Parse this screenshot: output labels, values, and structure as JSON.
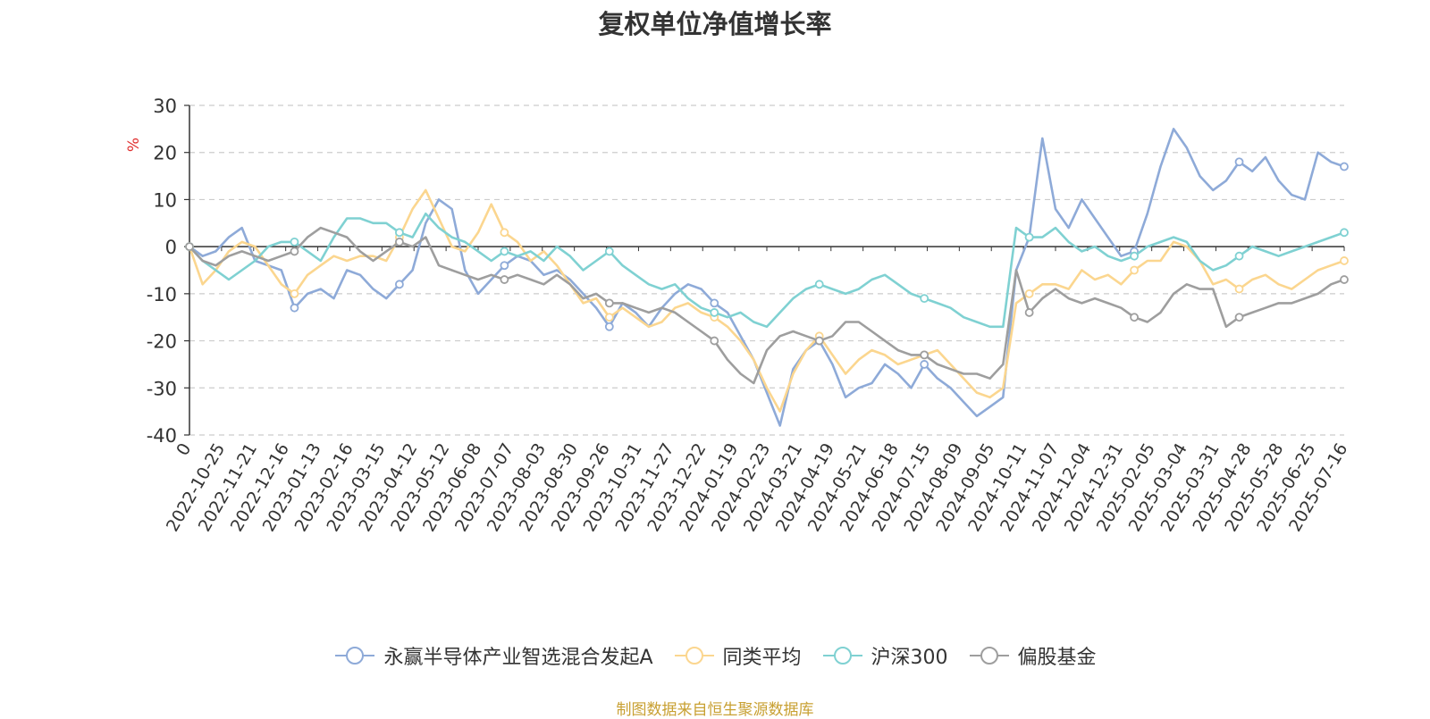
{
  "chart_data": {
    "type": "line",
    "title": "复权单位净值增长率",
    "ylabel": "%",
    "ylim": [
      -40,
      30
    ],
    "yticks": [
      30,
      20,
      10,
      0,
      -10,
      -20,
      -30,
      -40
    ],
    "x_start_label": "0",
    "x_tick_labels": [
      "2022-10-25",
      "2022-11-21",
      "2022-12-16",
      "2023-01-13",
      "2023-02-16",
      "2023-03-15",
      "2023-04-12",
      "2023-05-12",
      "2023-06-08",
      "2023-07-07",
      "2023-08-03",
      "2023-08-30",
      "2023-09-26",
      "2023-10-31",
      "2023-11-27",
      "2023-12-22",
      "2024-01-19",
      "2024-02-23",
      "2024-03-21",
      "2024-04-19",
      "2024-05-21",
      "2024-06-18",
      "2024-07-15",
      "2024-08-09",
      "2024-09-05",
      "2024-10-11",
      "2024-11-07",
      "2024-12-04",
      "2024-12-31",
      "2025-02-05",
      "2025-03-04",
      "2025-03-31",
      "2025-04-28",
      "2025-05-28",
      "2025-06-25",
      "2025-07-16"
    ],
    "grid": true,
    "legend_position": "bottom",
    "series": [
      {
        "name": "永赢半导体产业智选混合发起A",
        "color": "#8eaad8",
        "values": [
          0,
          -2,
          -1,
          2,
          4,
          -3,
          -4,
          -5,
          -13,
          -10,
          -9,
          -11,
          -5,
          -6,
          -9,
          -11,
          -8,
          -5,
          5,
          10,
          8,
          -5,
          -10,
          -7,
          -4,
          -2,
          -3,
          -6,
          -5,
          -7,
          -10,
          -13,
          -17,
          -12,
          -14,
          -17,
          -13,
          -10,
          -8,
          -9,
          -12,
          -14,
          -19,
          -24,
          -31,
          -38,
          -26,
          -22,
          -20,
          -25,
          -32,
          -30,
          -29,
          -25,
          -27,
          -30,
          -25,
          -28,
          -30,
          -33,
          -36,
          -34,
          -32,
          -5,
          2,
          23,
          8,
          4,
          10,
          6,
          2,
          -2,
          -1,
          7,
          17,
          25,
          21,
          15,
          12,
          14,
          18,
          16,
          19,
          14,
          11,
          10,
          20,
          18,
          17
        ]
      },
      {
        "name": "同类平均",
        "color": "#fbd68f",
        "values": [
          0,
          -8,
          -5,
          -1,
          1,
          0,
          -4,
          -8,
          -10,
          -6,
          -4,
          -2,
          -3,
          -2,
          -2,
          -3,
          2,
          8,
          12,
          6,
          0,
          -1,
          3,
          9,
          3,
          1,
          -3,
          -1,
          -4,
          -8,
          -12,
          -11,
          -15,
          -13,
          -15,
          -17,
          -16,
          -13,
          -12,
          -14,
          -15,
          -17,
          -20,
          -24,
          -30,
          -35,
          -27,
          -22,
          -19,
          -23,
          -27,
          -24,
          -22,
          -23,
          -25,
          -24,
          -23,
          -22,
          -25,
          -28,
          -31,
          -32,
          -30,
          -12,
          -10,
          -8,
          -8,
          -9,
          -5,
          -7,
          -6,
          -8,
          -5,
          -3,
          -3,
          1,
          0,
          -3,
          -8,
          -7,
          -9,
          -7,
          -6,
          -8,
          -9,
          -7,
          -5,
          -4,
          -3
        ]
      },
      {
        "name": "沪深300",
        "color": "#7fd1d2",
        "values": [
          0,
          -3,
          -5,
          -7,
          -5,
          -3,
          0,
          1,
          1,
          -1,
          -3,
          2,
          6,
          6,
          5,
          5,
          3,
          2,
          7,
          4,
          2,
          1,
          -1,
          -3,
          -1,
          -2,
          -1,
          -3,
          0,
          -2,
          -5,
          -3,
          -1,
          -4,
          -6,
          -8,
          -9,
          -8,
          -11,
          -13,
          -14,
          -15,
          -14,
          -16,
          -17,
          -14,
          -11,
          -9,
          -8,
          -9,
          -10,
          -9,
          -7,
          -6,
          -8,
          -10,
          -11,
          -12,
          -13,
          -15,
          -16,
          -17,
          -17,
          4,
          2,
          2,
          4,
          1,
          -1,
          0,
          -2,
          -3,
          -2,
          0,
          1,
          2,
          1,
          -3,
          -5,
          -4,
          -2,
          0,
          -1,
          -2,
          -1,
          0,
          1,
          2,
          3
        ]
      },
      {
        "name": "偏股基金",
        "color": "#9e9e9e",
        "values": [
          0,
          -3,
          -4,
          -2,
          -1,
          -2,
          -3,
          -2,
          -1,
          2,
          4,
          3,
          2,
          -1,
          -3,
          -1,
          1,
          0,
          2,
          -4,
          -5,
          -6,
          -7,
          -6,
          -7,
          -6,
          -7,
          -8,
          -6,
          -8,
          -11,
          -10,
          -12,
          -12,
          -13,
          -14,
          -13,
          -14,
          -16,
          -18,
          -20,
          -24,
          -27,
          -29,
          -22,
          -19,
          -18,
          -19,
          -20,
          -19,
          -16,
          -16,
          -18,
          -20,
          -22,
          -23,
          -23,
          -25,
          -26,
          -27,
          -27,
          -28,
          -25,
          -5,
          -14,
          -11,
          -9,
          -11,
          -12,
          -11,
          -12,
          -13,
          -15,
          -16,
          -14,
          -10,
          -8,
          -9,
          -9,
          -17,
          -15,
          -14,
          -13,
          -12,
          -12,
          -11,
          -10,
          -8,
          -7
        ]
      }
    ],
    "source_note": "制图数据来自恒生聚源数据库"
  }
}
